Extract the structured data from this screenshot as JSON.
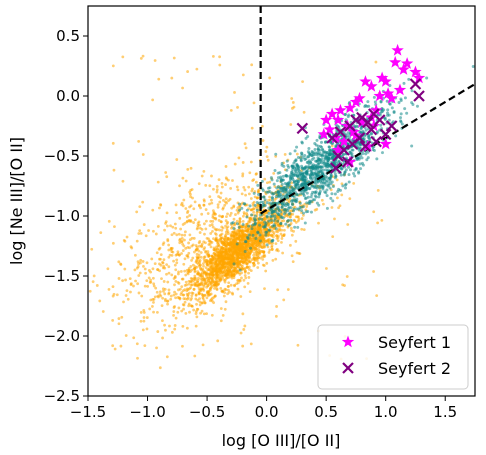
{
  "chart_data": {
    "type": "scatter",
    "xlabel": "log [O III]/[O II]",
    "ylabel": "log [Ne III]/[O II]",
    "xlim": [
      -1.5,
      1.75
    ],
    "ylim": [
      -2.5,
      0.75
    ],
    "xticks": [
      -1.5,
      -1.0,
      -0.5,
      0.0,
      0.5,
      1.0,
      1.5
    ],
    "yticks": [
      -2.5,
      -2.0,
      -1.5,
      -1.0,
      -0.5,
      0.0,
      0.5
    ],
    "xtick_labels": [
      "−1.5",
      "−1.0",
      "−0.5",
      "0.0",
      "0.5",
      "1.0",
      "1.5"
    ],
    "ytick_labels": [
      "−2.5",
      "−2.0",
      "−1.5",
      "−1.0",
      "−0.5",
      "0.0",
      "0.5"
    ],
    "grid": false,
    "legend_position": "bottom-right",
    "colors": {
      "orange_cloud": "#ffa500",
      "teal_cloud": "#138b8b",
      "seyfert1": "#ff00ff",
      "seyfert2": "#800080"
    },
    "dividing_lines": [
      {
        "style": "dashed",
        "from": [
          -0.05,
          0.75
        ],
        "to": [
          -0.05,
          -0.98
        ]
      },
      {
        "style": "dashed",
        "from": [
          -0.05,
          -0.98
        ],
        "to": [
          1.75,
          0.1
        ]
      }
    ],
    "series": [
      {
        "name": "Seyfert 1",
        "marker": "star",
        "x": [
          1.1,
          1.08,
          1.18,
          1.25,
          0.83,
          0.88,
          1.02,
          1.05,
          0.75,
          0.6,
          0.97,
          1.0,
          1.28,
          1.12,
          0.95,
          0.78,
          0.7,
          0.62,
          0.55,
          0.5,
          0.68,
          0.8,
          0.88,
          0.92,
          1.15,
          0.73,
          0.58,
          0.85,
          0.65,
          0.48,
          0.53,
          0.75,
          0.9,
          1.0,
          0.6,
          0.7
        ],
        "y": [
          0.38,
          0.28,
          0.27,
          0.2,
          0.12,
          0.08,
          0.02,
          -0.02,
          -0.05,
          -0.2,
          0.15,
          0.12,
          0.15,
          0.05,
          0.0,
          -0.02,
          -0.1,
          -0.12,
          -0.15,
          -0.2,
          -0.25,
          -0.22,
          -0.18,
          -0.12,
          0.22,
          -0.3,
          -0.35,
          -0.42,
          -0.38,
          -0.32,
          -0.28,
          -0.33,
          -0.25,
          -0.4,
          -0.45,
          -0.55
        ]
      },
      {
        "name": "Seyfert 2",
        "marker": "x",
        "x": [
          0.3,
          0.55,
          0.62,
          0.7,
          0.75,
          0.8,
          0.85,
          0.88,
          0.9,
          0.95,
          1.0,
          1.05,
          1.25,
          1.28,
          0.6,
          0.65,
          0.72,
          0.78,
          0.83,
          0.58,
          0.68,
          0.92
        ],
        "y": [
          -0.27,
          -0.35,
          -0.3,
          -0.25,
          -0.2,
          -0.18,
          -0.22,
          -0.28,
          -0.15,
          -0.2,
          -0.32,
          -0.25,
          0.1,
          0.0,
          -0.5,
          -0.45,
          -0.4,
          -0.35,
          -0.42,
          -0.6,
          -0.55,
          -0.38
        ]
      }
    ]
  }
}
